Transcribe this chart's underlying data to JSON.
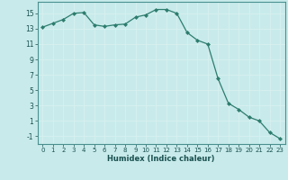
{
  "x": [
    0,
    1,
    2,
    3,
    4,
    5,
    6,
    7,
    8,
    9,
    10,
    11,
    12,
    13,
    14,
    15,
    16,
    17,
    18,
    19,
    20,
    21,
    22,
    23
  ],
  "y": [
    13.2,
    13.7,
    14.2,
    15.0,
    15.1,
    13.5,
    13.3,
    13.5,
    13.6,
    14.5,
    14.8,
    15.5,
    15.5,
    15.0,
    12.5,
    11.5,
    11.0,
    6.5,
    3.3,
    2.5,
    1.5,
    1.0,
    -0.5,
    -1.3
  ],
  "xlabel": "Humidex (Indice chaleur)",
  "xlim": [
    -0.5,
    23.5
  ],
  "ylim": [
    -2,
    16.5
  ],
  "yticks": [
    -1,
    1,
    3,
    5,
    7,
    9,
    11,
    13,
    15
  ],
  "xtick_labels": [
    "0",
    "1",
    "2",
    "3",
    "4",
    "5",
    "6",
    "7",
    "8",
    "9",
    "10",
    "11",
    "12",
    "13",
    "14",
    "15",
    "16",
    "17",
    "18",
    "19",
    "20",
    "21",
    "22",
    "23"
  ],
  "line_color": "#2d7d6e",
  "bg_color": "#c8eaea",
  "grid_color": "#b0d8d8",
  "spine_color": "#4a9090"
}
